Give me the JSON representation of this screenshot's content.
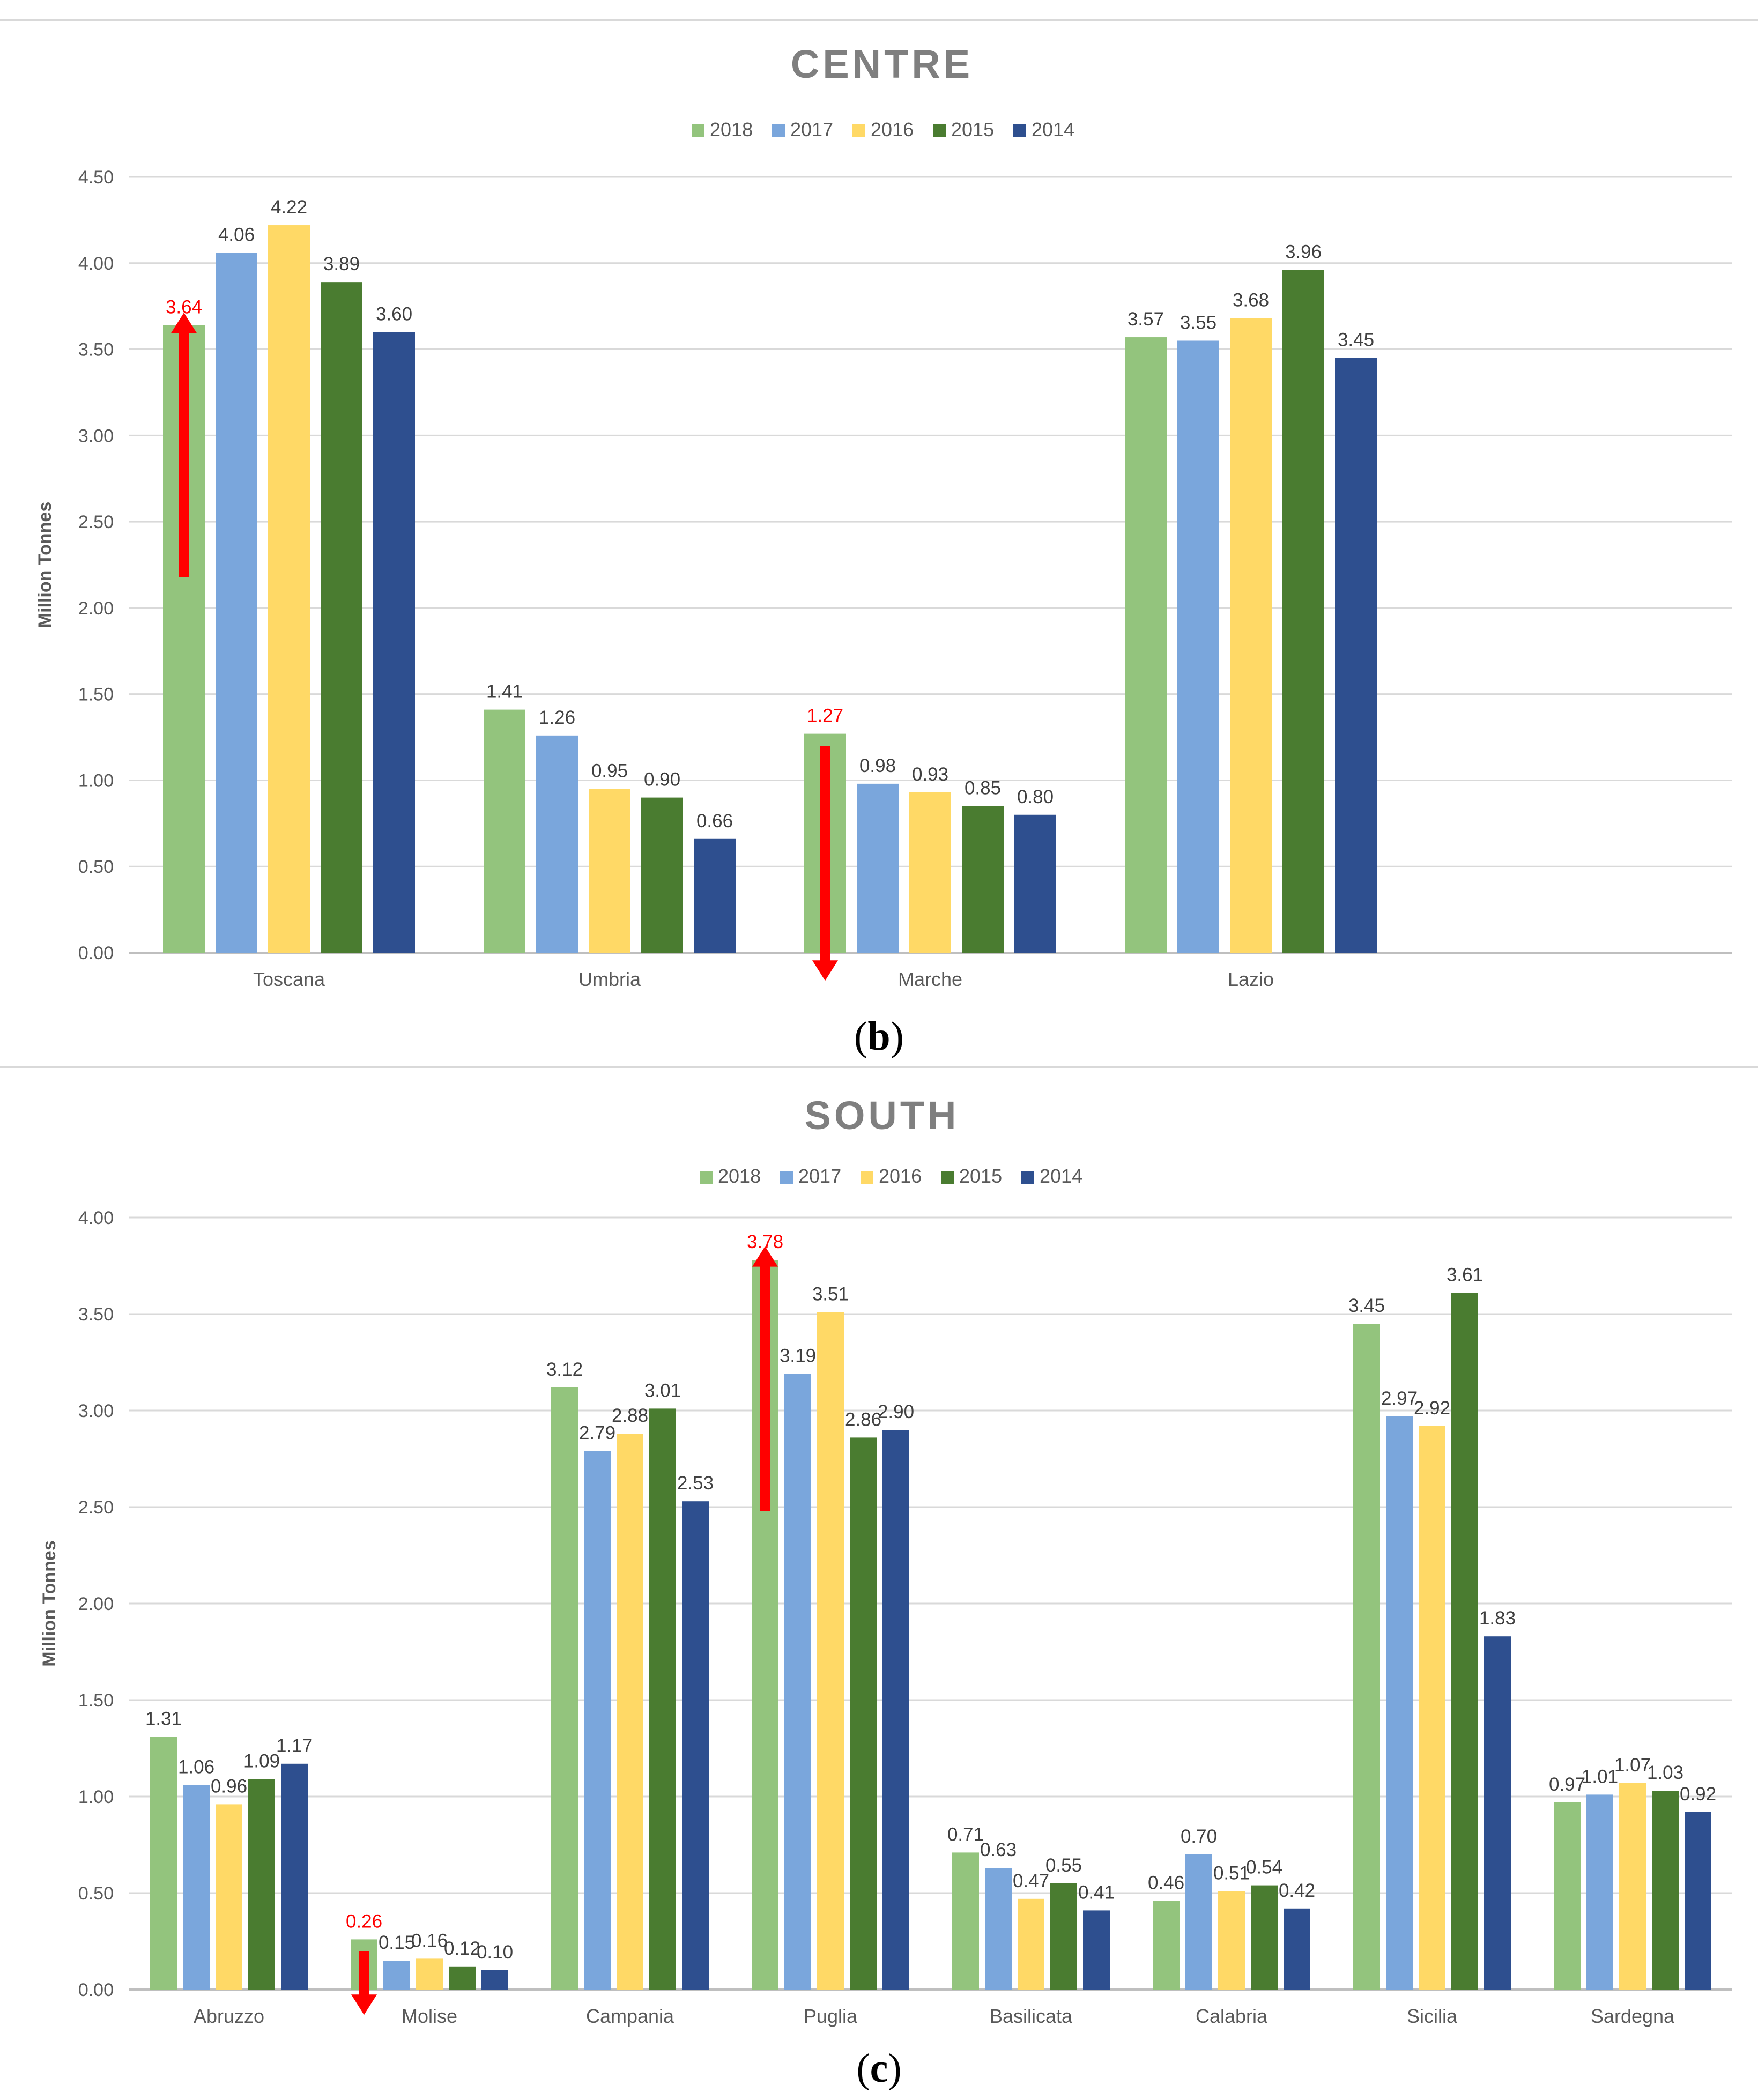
{
  "colors": {
    "2018": "#93c47d",
    "2017": "#7aa6dc",
    "2016": "#ffd966",
    "2015": "#4a7c30",
    "2014": "#2e4f8f",
    "highlight": "#ff0000",
    "grid": "#d9d9d9",
    "axis_text": "#595959",
    "title": "#7f7f7f"
  },
  "panels": [
    {
      "open": "(",
      "letter": "b",
      "close": ")"
    },
    {
      "open": "(",
      "letter": "c",
      "close": ")"
    }
  ],
  "chart_data": [
    {
      "type": "bar",
      "title": "CENTRE",
      "ylabel": "Million Tonnes",
      "xlabel": "",
      "ylim": [
        0,
        4.5
      ],
      "yticks": [
        "0.00",
        "0.50",
        "1.00",
        "1.50",
        "2.00",
        "2.50",
        "3.00",
        "3.50",
        "4.00",
        "4.50"
      ],
      "grid": true,
      "legend": "top-center",
      "categories": [
        "Toscana",
        "Umbria",
        "Marche",
        "Lazio"
      ],
      "series": [
        {
          "name": "2018",
          "values": [
            3.64,
            1.41,
            1.27,
            3.57
          ],
          "labels": [
            "3.64",
            "1.41",
            "1.27",
            "3.57"
          ]
        },
        {
          "name": "2017",
          "values": [
            4.06,
            1.26,
            0.98,
            3.55
          ],
          "labels": [
            "4.06",
            "1.26",
            "0.98",
            "3.55"
          ]
        },
        {
          "name": "2016",
          "values": [
            4.22,
            0.95,
            0.93,
            3.68
          ],
          "labels": [
            "4.22",
            "0.95",
            "0.93",
            "3.68"
          ]
        },
        {
          "name": "2015",
          "values": [
            3.89,
            0.9,
            0.85,
            3.96
          ],
          "labels": [
            "3.89",
            "0.90",
            "0.85",
            "3.96"
          ]
        },
        {
          "name": "2014",
          "values": [
            3.6,
            0.66,
            0.8,
            3.45
          ],
          "labels": [
            "3.60",
            "0.66",
            "0.80",
            "3.45"
          ]
        }
      ],
      "highlights": [
        {
          "category": "Toscana",
          "series": "2018",
          "direction": "up",
          "from": 2.18,
          "to": 3.7
        },
        {
          "category": "Marche",
          "series": "2018",
          "direction": "down",
          "from": 1.2,
          "to": -0.15
        }
      ]
    },
    {
      "type": "bar",
      "title": "SOUTH",
      "ylabel": "Million Tonnes",
      "xlabel": "",
      "ylim": [
        0,
        4.0
      ],
      "yticks": [
        "0.00",
        "0.50",
        "1.00",
        "1.50",
        "2.00",
        "2.50",
        "3.00",
        "3.50",
        "4.00"
      ],
      "grid": true,
      "legend": "top-center",
      "categories": [
        "Abruzzo",
        "Molise",
        "Campania",
        "Puglia",
        "Basilicata",
        "Calabria",
        "Sicilia",
        "Sardegna"
      ],
      "series": [
        {
          "name": "2018",
          "values": [
            1.31,
            0.26,
            3.12,
            3.78,
            0.71,
            0.46,
            3.45,
            0.97
          ],
          "labels": [
            "1.31",
            "0.26",
            "3.12",
            "3.78",
            "0.71",
            "0.46",
            "3.45",
            "0.97"
          ]
        },
        {
          "name": "2017",
          "values": [
            1.06,
            0.15,
            2.79,
            3.19,
            0.63,
            0.7,
            2.97,
            1.01
          ],
          "labels": [
            "1.06",
            "0.15",
            "2.79",
            "3.19",
            "0.63",
            "0.70",
            "2.97",
            "1.01"
          ]
        },
        {
          "name": "2016",
          "values": [
            0.96,
            0.16,
            2.88,
            3.51,
            0.47,
            0.51,
            2.92,
            1.07
          ],
          "labels": [
            "0.96",
            "0.16",
            "2.88",
            "3.51",
            "0.47",
            "0.51",
            "2.92",
            "1.07"
          ]
        },
        {
          "name": "2015",
          "values": [
            1.09,
            0.12,
            3.01,
            2.86,
            0.55,
            0.54,
            3.61,
            1.03
          ],
          "labels": [
            "1.09",
            "0.12",
            "3.01",
            "2.86",
            "0.55",
            "0.54",
            "3.61",
            "1.03"
          ]
        },
        {
          "name": "2014",
          "values": [
            1.17,
            0.1,
            2.53,
            2.9,
            0.41,
            0.42,
            1.83,
            0.92
          ],
          "labels": [
            "1.17",
            "0.10",
            "2.53",
            "2.90",
            "0.41",
            "0.42",
            "1.83",
            "0.92"
          ]
        }
      ],
      "highlights": [
        {
          "category": "Puglia",
          "series": "2018",
          "direction": "up",
          "from": 2.48,
          "to": 3.84
        },
        {
          "category": "Molise",
          "series": "2018",
          "direction": "down",
          "from": 0.2,
          "to": -0.12
        }
      ]
    }
  ]
}
